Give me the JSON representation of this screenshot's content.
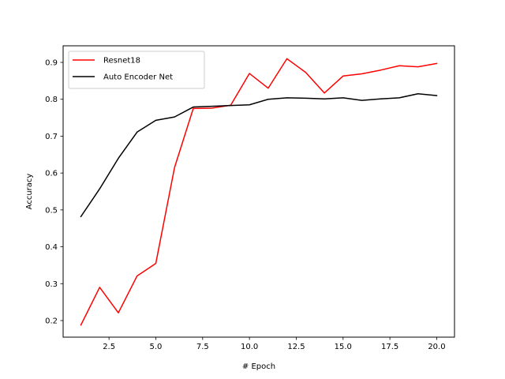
{
  "chart_data": {
    "type": "line",
    "title": "",
    "xlabel": "# Epoch",
    "ylabel": "Accuracy",
    "xlim": [
      0.05,
      20.95
    ],
    "ylim": [
      0.155,
      0.945
    ],
    "xticks": [
      2.5,
      5.0,
      7.5,
      10.0,
      12.5,
      15.0,
      17.5,
      20.0
    ],
    "xtick_labels": [
      "2.5",
      "5.0",
      "7.5",
      "10.0",
      "12.5",
      "15.0",
      "17.5",
      "20.0"
    ],
    "yticks": [
      0.2,
      0.3,
      0.4,
      0.5,
      0.6,
      0.7,
      0.8,
      0.9
    ],
    "ytick_labels": [
      "0.2",
      "0.3",
      "0.4",
      "0.5",
      "0.6",
      "0.7",
      "0.8",
      "0.9"
    ],
    "grid": false,
    "legend_position": "top-left",
    "x": [
      1,
      2,
      3,
      4,
      5,
      6,
      7,
      8,
      9,
      10,
      11,
      12,
      13,
      14,
      15,
      16,
      17,
      18,
      19,
      20
    ],
    "series": [
      {
        "name": "Resnet18",
        "color": "#ff0000",
        "values": [
          0.188,
          0.29,
          0.221,
          0.321,
          0.355,
          0.615,
          0.775,
          0.776,
          0.784,
          0.87,
          0.83,
          0.91,
          0.873,
          0.817,
          0.863,
          0.869,
          0.879,
          0.891,
          0.888,
          0.897
        ]
      },
      {
        "name": "Auto Encoder Net",
        "color": "#000000",
        "values": [
          0.482,
          0.557,
          0.64,
          0.711,
          0.743,
          0.752,
          0.779,
          0.781,
          0.783,
          0.785,
          0.8,
          0.804,
          0.803,
          0.801,
          0.804,
          0.797,
          0.801,
          0.804,
          0.815,
          0.81
        ]
      }
    ]
  }
}
